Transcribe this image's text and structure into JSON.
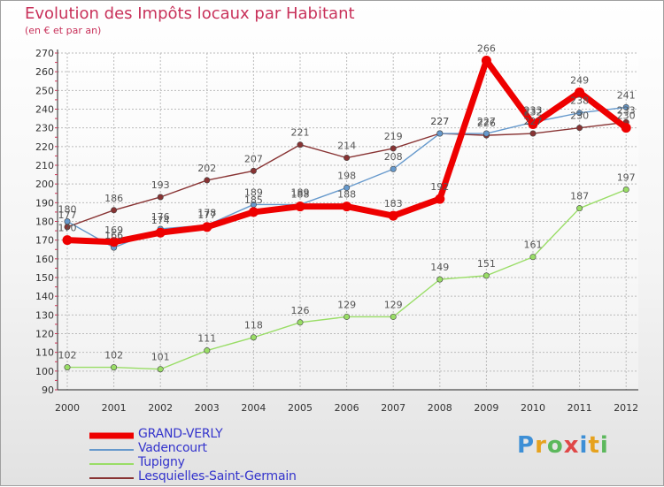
{
  "chart_data": {
    "type": "line",
    "title": "Evolution des Impôts locaux par Habitant",
    "subtitle": "(en € et par an)",
    "x": [
      2000,
      2001,
      2002,
      2003,
      2004,
      2005,
      2006,
      2007,
      2008,
      2009,
      2010,
      2011,
      2012
    ],
    "ylim": [
      90,
      270
    ],
    "yticks": [
      90,
      100,
      110,
      120,
      130,
      140,
      150,
      160,
      170,
      180,
      190,
      200,
      210,
      220,
      230,
      240,
      250,
      260,
      270
    ],
    "grid": true,
    "legend_position": "bottom-left",
    "series": [
      {
        "name": "GRAND-VERLY",
        "color": "#ee0000",
        "values": [
          170,
          169,
          174,
          177,
          185,
          188,
          188,
          183,
          192,
          266,
          232,
          249,
          230
        ]
      },
      {
        "name": "Vadencourt",
        "color": "#6699cc",
        "values": [
          180,
          166,
          176,
          178,
          189,
          189,
          198,
          208,
          227,
          227,
          233,
          238,
          241
        ]
      },
      {
        "name": "Tupigny",
        "color": "#99dd66",
        "values": [
          102,
          102,
          101,
          111,
          118,
          126,
          129,
          129,
          149,
          151,
          161,
          187,
          197
        ]
      },
      {
        "name": "Lesquielles-Saint-Germain",
        "color": "#883333",
        "values": [
          177,
          186,
          193,
          202,
          207,
          221,
          214,
          219,
          227,
          226,
          227,
          230,
          233
        ]
      }
    ]
  },
  "logo": {
    "letters": [
      "P",
      "r",
      "o",
      "x",
      "i",
      "t",
      "i"
    ],
    "colors": [
      "#3d8fd6",
      "#e6a21e",
      "#5cb85c",
      "#e04848",
      "#3d8fd6",
      "#e6a21e",
      "#5cb85c"
    ]
  }
}
